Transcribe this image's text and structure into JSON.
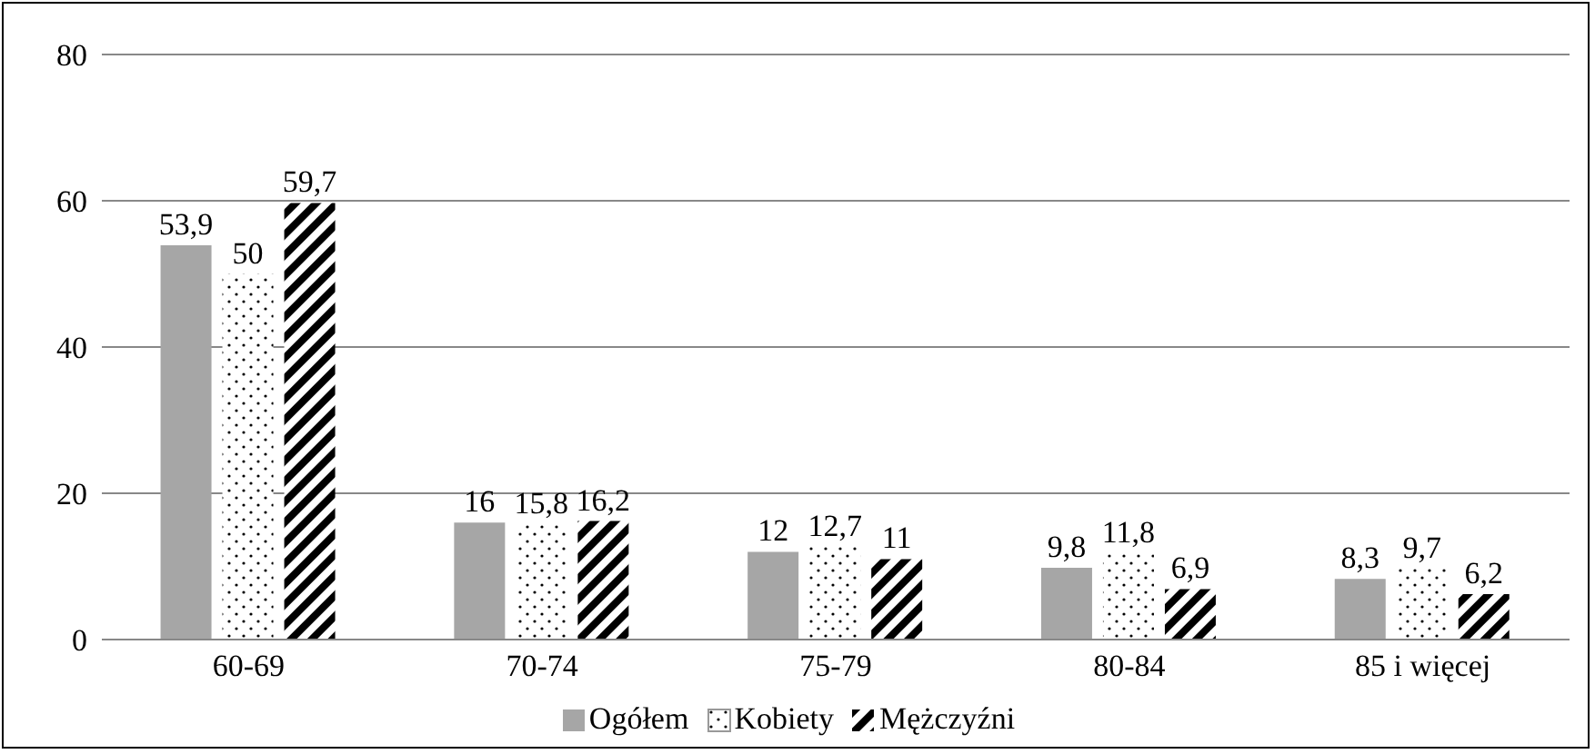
{
  "chart_data": {
    "type": "bar",
    "categories": [
      "60-69",
      "70-74",
      "75-79",
      "80-84",
      "85 i więcej"
    ],
    "series": [
      {
        "name": "Ogółem",
        "color": "#a6a6a6",
        "values": [
          53.9,
          16,
          12,
          9.8,
          8.3
        ],
        "value_labels": [
          "53,9",
          "16",
          "12",
          "9,8",
          "8,3"
        ]
      },
      {
        "name": "Kobiety",
        "color": "#ffffff",
        "values": [
          50,
          15.8,
          12.7,
          11.8,
          9.7
        ],
        "value_labels": [
          "50",
          "15,8",
          "12,7",
          "11,8",
          "9,7"
        ]
      },
      {
        "name": "Mężczyźni",
        "color": "#000000",
        "values": [
          59.7,
          16.2,
          11,
          6.9,
          6.2
        ],
        "value_labels": [
          "59,7",
          "16,2",
          "11",
          "6,9",
          "6,2"
        ]
      }
    ],
    "ylim": [
      0,
      80
    ],
    "yticks": [
      0,
      20,
      40,
      60,
      80
    ],
    "grid": "y",
    "legend": "bottom"
  }
}
